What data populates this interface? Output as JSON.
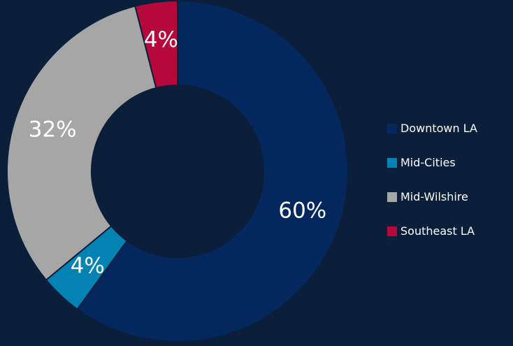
{
  "chart_data": {
    "type": "pie",
    "donut": true,
    "legend_position": "right",
    "background_color": "#0b1e3a",
    "categories": [
      "Downtown LA",
      "Mid-Cities",
      "Mid-Wilshire",
      "Southeast LA"
    ],
    "values": [
      60,
      4,
      32,
      4
    ],
    "value_labels": [
      "60%",
      "4%",
      "32%",
      "4%"
    ],
    "unit": "%",
    "colors": [
      "#04275d",
      "#0283b3",
      "#a6a6a6",
      "#b7083b"
    ]
  },
  "legend": {
    "items": [
      {
        "label": "Downtown LA",
        "color": "#04275d"
      },
      {
        "label": "Mid-Cities",
        "color": "#0283b3"
      },
      {
        "label": "Mid-Wilshire",
        "color": "#a6a6a6"
      },
      {
        "label": "Southeast LA",
        "color": "#b7083b"
      }
    ]
  }
}
